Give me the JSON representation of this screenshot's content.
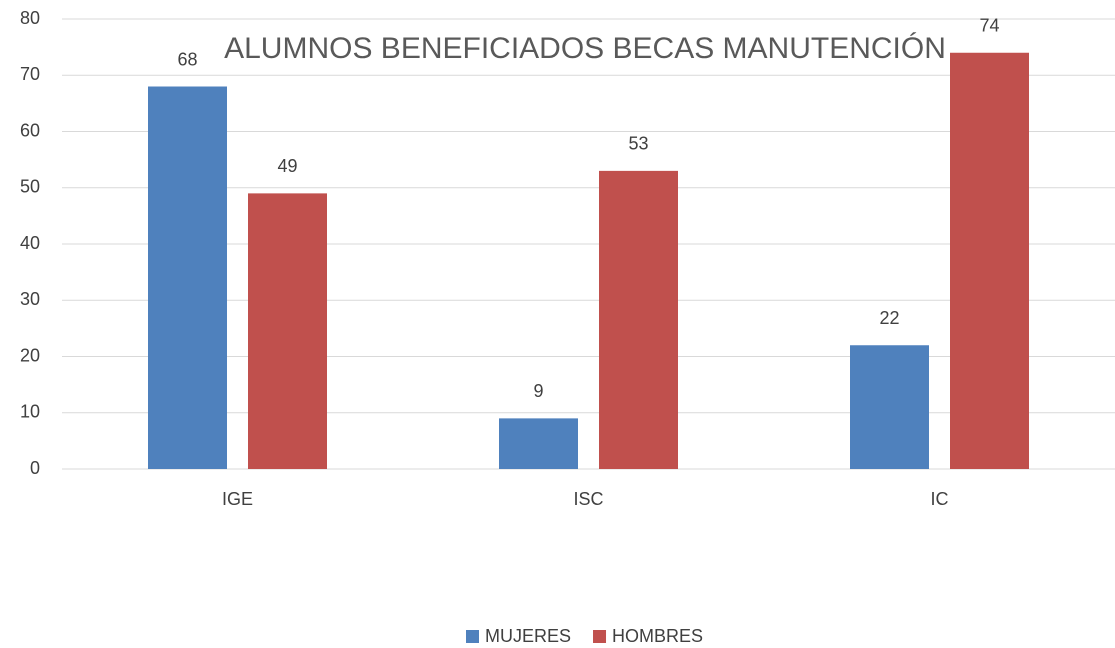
{
  "chart_data": {
    "type": "bar",
    "title": "ALUMNOS BENEFICIADOS BECAS MANUTENCIÓN",
    "categories": [
      "IGE",
      "ISC",
      "IC"
    ],
    "series": [
      {
        "name": "MUJERES",
        "color": "#4f81bd",
        "values": [
          68,
          9,
          22
        ]
      },
      {
        "name": "HOMBRES",
        "color": "#c0504d",
        "values": [
          49,
          53,
          74
        ]
      }
    ],
    "ylim": [
      0,
      80
    ],
    "yticks": [
      0,
      10,
      20,
      30,
      40,
      50,
      60,
      70,
      80
    ],
    "grid": true,
    "legend": "bottom"
  }
}
